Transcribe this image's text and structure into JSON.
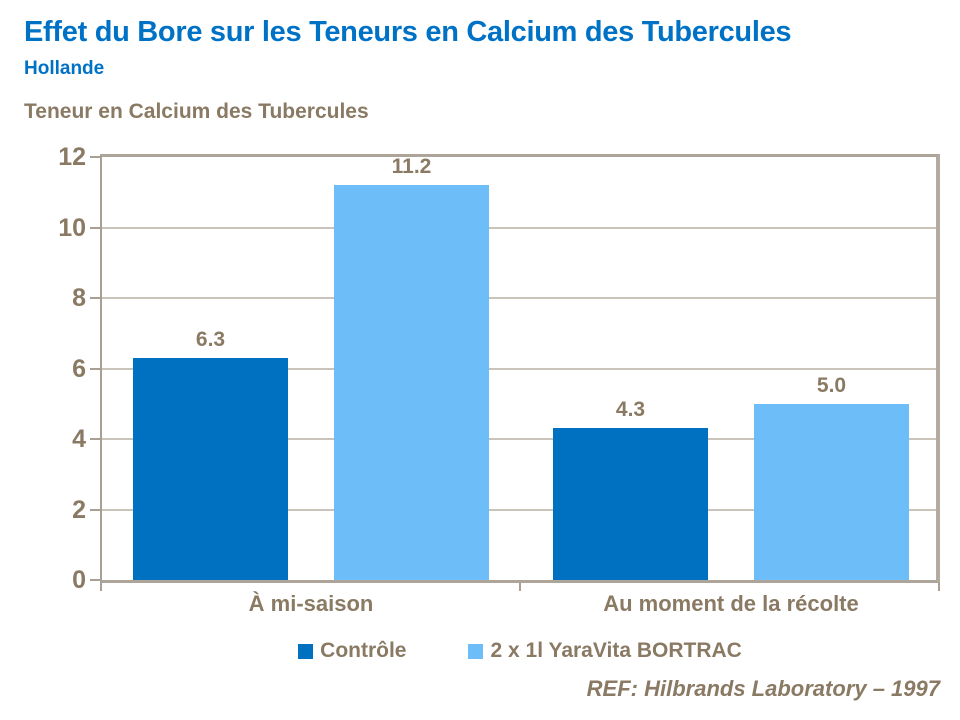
{
  "header": {
    "title": "Effet du Bore sur les Teneurs en Calcium des Tubercules",
    "subtitle": "Hollande"
  },
  "chart_data": {
    "type": "bar",
    "title": "Teneur en Calcium des Tubercules",
    "categories": [
      "À mi-saison",
      "Au moment de la récolte"
    ],
    "series": [
      {
        "name": "Contrôle",
        "color": "#0070C0",
        "values": [
          6.3,
          4.3
        ]
      },
      {
        "name": "2 x 1l YaraVita BORTRAC",
        "color": "#6CBDF8",
        "values": [
          11.2,
          5.0
        ]
      }
    ],
    "ylim": [
      0,
      12
    ],
    "ytick_step": 2,
    "grid": "horizontal",
    "legend_position": "bottom",
    "value_labels": true,
    "value_label_decimals": 1
  },
  "footer": {
    "reference": "REF: Hilbrands Laboratory – 1997"
  },
  "colors": {
    "title_blue": "#0072C6",
    "text_brown": "#8A7A64",
    "axis_line": "#A8A095",
    "gridline": "#C9C3B9",
    "series_dark_blue": "#0070C0",
    "series_light_blue": "#6CBDF8"
  }
}
